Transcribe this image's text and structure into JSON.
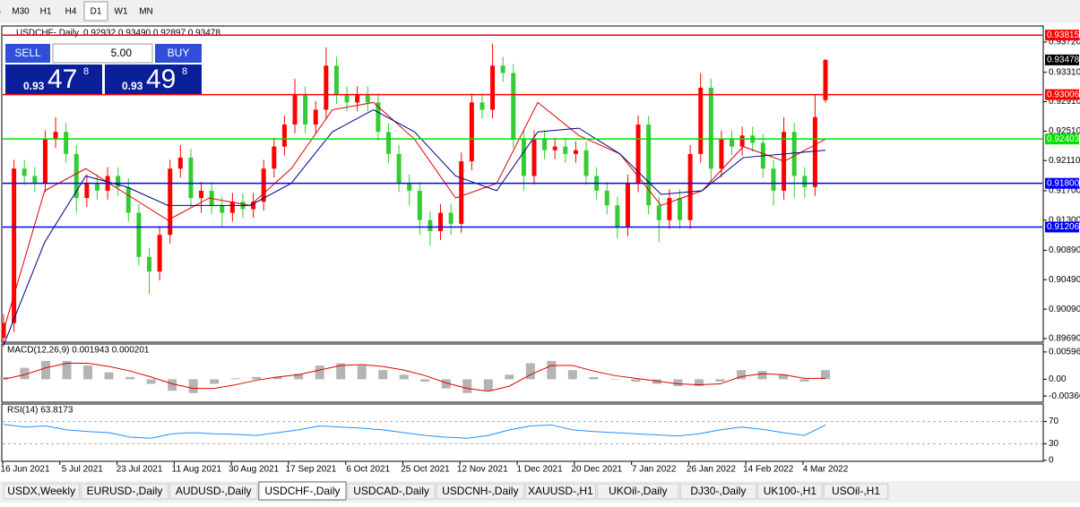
{
  "toolbar": {
    "buttons": [
      "5",
      "M30",
      "H1",
      "H4",
      "D1",
      "W1",
      "MN"
    ],
    "active": "D1"
  },
  "chart": {
    "type": "candlestick",
    "symbol": "USDCHF-,Daily",
    "ohlc_text": "0.92932 0.93490 0.92897 0.93478",
    "trade_panel": {
      "sell": "SELL",
      "buy": "BUY",
      "lot": "5.00",
      "sell_price": {
        "big": "0.93",
        "pips": "47",
        "point": "8"
      },
      "buy_price": {
        "big": "0.93",
        "pips": "49",
        "point": "8"
      }
    },
    "bull_color": "#ff0000",
    "bear_color": "#32cd32",
    "ylim": [
      0.89653,
      0.93927
    ],
    "yticks": [
      {
        "value": 0.9372,
        "label": "0.93720"
      },
      {
        "value": 0.9331,
        "label": "0.93310"
      },
      {
        "value": 0.9291,
        "label": "0.92910"
      },
      {
        "value": 0.9251,
        "label": "0.92510"
      },
      {
        "value": 0.9211,
        "label": "0.92110"
      },
      {
        "value": 0.917,
        "label": "0.91700"
      },
      {
        "value": 0.913,
        "label": "0.91300"
      },
      {
        "value": 0.9089,
        "label": "0.90890"
      },
      {
        "value": 0.9049,
        "label": "0.90490"
      },
      {
        "value": 0.9009,
        "label": "0.90090"
      },
      {
        "value": 0.8969,
        "label": "0.89690"
      }
    ],
    "levels": [
      {
        "value": 0.93815,
        "label": "0.93815",
        "color": "#ff0000"
      },
      {
        "value": 0.93006,
        "label": "0.93006",
        "color": "#ff0000"
      },
      {
        "value": 0.92403,
        "label": "0.92403",
        "color": "#00e000"
      },
      {
        "value": 0.918,
        "label": "0.91800",
        "color": "#0000ff"
      },
      {
        "value": 0.91206,
        "label": "0.91206",
        "color": "#0000ff"
      }
    ],
    "current_price": {
      "value": 0.93478,
      "label": "0.93478"
    },
    "open": [
      0.897,
      0.899,
      0.92,
      0.919,
      0.918,
      0.924,
      0.925,
      0.922,
      0.916,
      0.918,
      0.917,
      0.919,
      0.9175,
      0.914,
      0.908,
      0.906,
      0.911,
      0.92,
      0.9215,
      0.916,
      0.917,
      0.915,
      0.914,
      0.9155,
      0.9145,
      0.9155,
      0.92,
      0.923,
      0.926,
      0.93,
      0.926,
      0.928,
      0.934,
      0.93,
      0.929,
      0.93,
      0.929,
      0.925,
      0.922,
      0.918,
      0.917,
      0.913,
      0.9115,
      0.914,
      0.9125,
      0.921,
      0.929,
      0.928,
      0.934,
      0.933,
      0.924,
      0.919,
      0.924,
      0.9225,
      0.923,
      0.922,
      0.9225,
      0.919,
      0.917,
      0.915,
      0.912,
      0.918,
      0.926,
      0.915,
      0.913,
      0.916,
      0.913,
      0.922,
      0.931,
      0.92,
      0.924,
      0.923,
      0.9245,
      0.9235,
      0.92,
      0.917,
      0.925,
      0.919,
      0.9175,
      0.92932
    ],
    "high": [
      0.9002,
      0.9212,
      0.9212,
      0.9202,
      0.9252,
      0.927,
      0.9262,
      0.9232,
      0.9192,
      0.9192,
      0.9202,
      0.9202,
      0.9187,
      0.9152,
      0.9092,
      0.9122,
      0.9212,
      0.9232,
      0.9227,
      0.9182,
      0.9182,
      0.9162,
      0.9167,
      0.9167,
      0.9167,
      0.9212,
      0.9242,
      0.9272,
      0.9322,
      0.9312,
      0.9292,
      0.9365,
      0.9352,
      0.9312,
      0.9312,
      0.9312,
      0.9302,
      0.9262,
      0.9232,
      0.9192,
      0.9182,
      0.9142,
      0.9152,
      0.9152,
      0.9222,
      0.9302,
      0.9302,
      0.937,
      0.9352,
      0.9342,
      0.9252,
      0.9252,
      0.9252,
      0.9242,
      0.9242,
      0.9237,
      0.9237,
      0.9202,
      0.9182,
      0.9162,
      0.9192,
      0.9272,
      0.9272,
      0.9162,
      0.9172,
      0.9172,
      0.9232,
      0.933,
      0.9322,
      0.9252,
      0.9252,
      0.9257,
      0.9257,
      0.9247,
      0.9212,
      0.927,
      0.9262,
      0.9202,
      0.93,
      0.9349
    ],
    "low": [
      0.8958,
      0.8978,
      0.9178,
      0.9168,
      0.9168,
      0.9228,
      0.9208,
      0.914,
      0.9148,
      0.9158,
      0.9158,
      0.9163,
      0.9128,
      0.9068,
      0.903,
      0.9048,
      0.9098,
      0.9188,
      0.9148,
      0.914,
      0.9138,
      0.9122,
      0.9128,
      0.9133,
      0.9133,
      0.9143,
      0.9188,
      0.9218,
      0.9248,
      0.9248,
      0.9248,
      0.9268,
      0.9288,
      0.9278,
      0.9278,
      0.9278,
      0.9238,
      0.9208,
      0.9168,
      0.915,
      0.911,
      0.9095,
      0.9103,
      0.911,
      0.9113,
      0.9198,
      0.9268,
      0.9268,
      0.9318,
      0.9228,
      0.917,
      0.9178,
      0.9213,
      0.9213,
      0.9208,
      0.9208,
      0.9178,
      0.9158,
      0.9138,
      0.9105,
      0.9108,
      0.9168,
      0.9138,
      0.91,
      0.9118,
      0.9118,
      0.9118,
      0.9208,
      0.918,
      0.9188,
      0.9218,
      0.9218,
      0.9223,
      0.9188,
      0.915,
      0.9158,
      0.916,
      0.916,
      0.9163,
      0.92897
    ],
    "close": [
      0.899,
      0.92,
      0.919,
      0.918,
      0.924,
      0.925,
      0.922,
      0.916,
      0.918,
      0.917,
      0.919,
      0.9175,
      0.914,
      0.908,
      0.906,
      0.911,
      0.92,
      0.9215,
      0.916,
      0.917,
      0.915,
      0.914,
      0.9155,
      0.9145,
      0.9155,
      0.92,
      0.923,
      0.926,
      0.93,
      0.926,
      0.928,
      0.934,
      0.93,
      0.929,
      0.93,
      0.929,
      0.925,
      0.922,
      0.918,
      0.917,
      0.913,
      0.9115,
      0.914,
      0.9125,
      0.921,
      0.929,
      0.928,
      0.934,
      0.933,
      0.924,
      0.919,
      0.924,
      0.9225,
      0.923,
      0.922,
      0.9225,
      0.919,
      0.917,
      0.915,
      0.912,
      0.918,
      0.926,
      0.915,
      0.913,
      0.916,
      0.913,
      0.922,
      0.931,
      0.92,
      0.924,
      0.923,
      0.9245,
      0.9235,
      0.92,
      0.917,
      0.925,
      0.919,
      0.9175,
      0.927,
      0.93478
    ],
    "ma_fast": {
      "color": "#e00000",
      "values": [
        0.898,
        0.917,
        0.92,
        0.9165,
        0.913,
        0.916,
        0.915,
        0.92,
        0.928,
        0.929,
        0.924,
        0.916,
        0.918,
        0.929,
        0.9245,
        0.922,
        0.915,
        0.917,
        0.923,
        0.921,
        0.924
      ]
    },
    "ma_slow": {
      "color": "#00008b",
      "values": [
        0.896,
        0.91,
        0.919,
        0.9175,
        0.915,
        0.915,
        0.915,
        0.918,
        0.925,
        0.928,
        0.925,
        0.919,
        0.917,
        0.925,
        0.9255,
        0.922,
        0.9165,
        0.917,
        0.9215,
        0.922,
        0.9225
      ]
    },
    "dates": [
      "16 Jun 2021",
      "5 Jul 2021",
      "23 Jul 2021",
      "11 Aug 2021",
      "30 Aug 2021",
      "17 Sep 2021",
      "6 Oct 2021",
      "25 Oct 2021",
      "12 Nov 2021",
      "1 Dec 2021",
      "20 Dec 2021",
      "7 Jan 2022",
      "26 Jan 2022",
      "14 Feb 2022",
      "4 Mar 2022"
    ],
    "macd": {
      "title": "MACD(12,26,9) 0.001943 0.000201",
      "ylim": [
        -0.0048,
        0.0075
      ],
      "yticks": [
        {
          "value": 0.00596,
          "label": "0.00596"
        },
        {
          "value": 0,
          "label": "0.00"
        },
        {
          "value": -0.00366,
          "label": "-0.00366"
        }
      ],
      "histogram_color": "#b4b4b4",
      "signal_color": "#e00000",
      "histogram": [
        0.0005,
        0.0025,
        0.004,
        0.004,
        0.003,
        0.0015,
        0.0005,
        -0.001,
        -0.0025,
        -0.003,
        -0.001,
        0.0002,
        0.0005,
        0.0005,
        0.0012,
        0.003,
        0.0035,
        0.003,
        0.002,
        0.001,
        -0.0005,
        -0.002,
        -0.003,
        -0.0025,
        0.001,
        0.0035,
        0.004,
        0.002,
        0.0005,
        0.0,
        -0.0005,
        -0.001,
        -0.0015,
        -0.0015,
        -0.0005,
        0.002,
        0.0018,
        0.001,
        -0.0005,
        0.002
      ],
      "signal": [
        0.0,
        0.001,
        0.0025,
        0.0035,
        0.0035,
        0.0028,
        0.0018,
        0.0005,
        -0.001,
        -0.002,
        -0.002,
        -0.0012,
        -0.0002,
        0.0005,
        0.001,
        0.002,
        0.003,
        0.0032,
        0.0028,
        0.002,
        0.0008,
        -0.0008,
        -0.002,
        -0.0026,
        -0.0015,
        0.001,
        0.003,
        0.003,
        0.0018,
        0.0008,
        0.0002,
        -0.0004,
        -0.001,
        -0.0012,
        -0.001,
        0.0006,
        0.0012,
        0.001,
        0.0002,
        0.0002
      ]
    },
    "rsi": {
      "title": "RSI(14) 63.8173",
      "ylim": [
        0,
        100
      ],
      "yticks": [
        70,
        30,
        0
      ],
      "levels": [
        70,
        30
      ],
      "color": "#1e90ff",
      "values": [
        65,
        60,
        62,
        55,
        52,
        50,
        42,
        40,
        48,
        50,
        48,
        47,
        45,
        50,
        55,
        62,
        60,
        58,
        55,
        50,
        45,
        42,
        40,
        45,
        55,
        62,
        64,
        55,
        52,
        50,
        48,
        46,
        44,
        48,
        55,
        60,
        56,
        50,
        45,
        63.8173
      ]
    }
  },
  "tabs": {
    "items": [
      "USDX,Weekly",
      "EURUSD-,Daily",
      "AUDUSD-,Daily",
      "USDCHF-,Daily",
      "USDCAD-,Daily",
      "USDCNH-,Daily",
      "XAUUSD-,H1",
      "UKOil-,Daily",
      "DJ30-,Daily",
      "UK100-,H1",
      "USOil-,H1"
    ],
    "active": "USDCHF-,Daily"
  }
}
